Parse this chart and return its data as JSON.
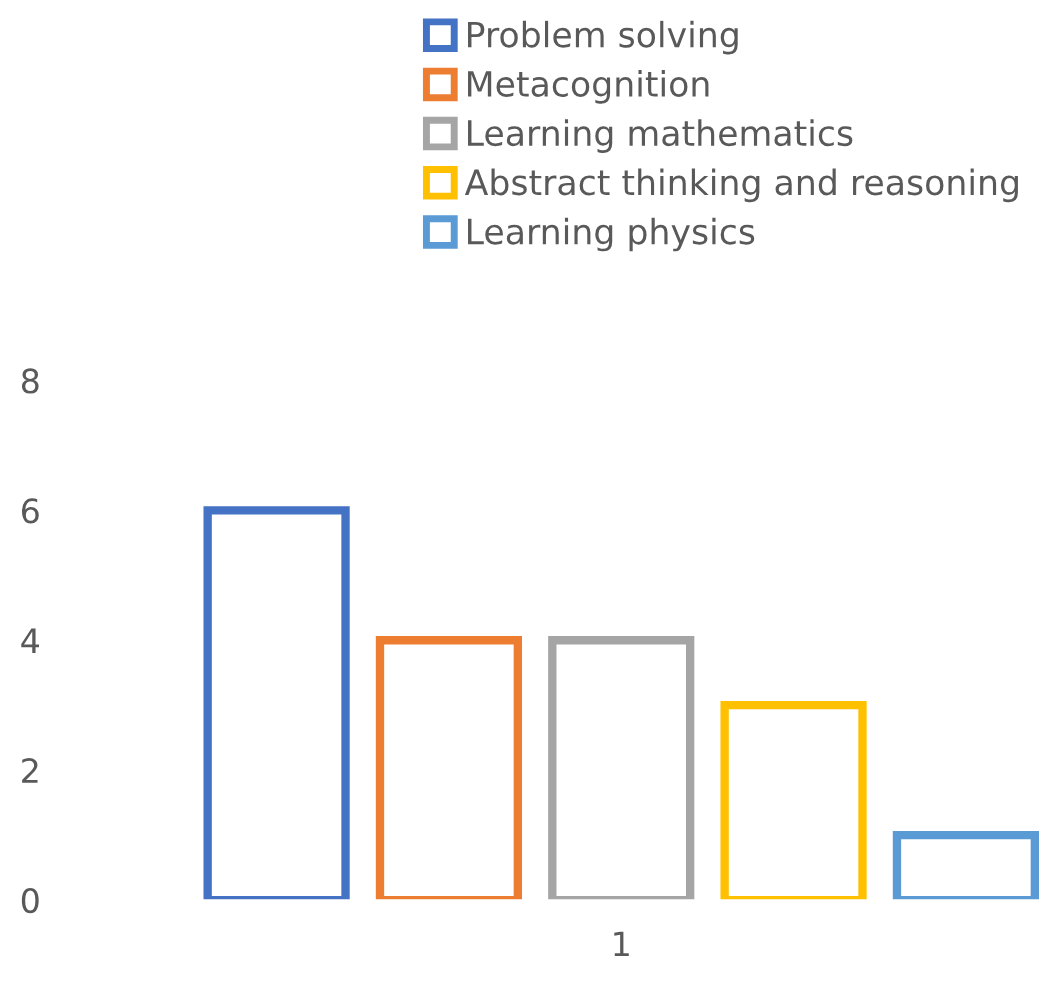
{
  "chart_data": {
    "type": "bar",
    "categories": [
      "1"
    ],
    "series": [
      {
        "name": "Problem solving",
        "color": "#4472c4",
        "values": [
          6
        ]
      },
      {
        "name": "Metacognition",
        "color": "#ed7d31",
        "values": [
          4
        ]
      },
      {
        "name": "Learning mathematics",
        "color": "#a5a5a5",
        "values": [
          4
        ]
      },
      {
        "name": "Abstract thinking and reasoning",
        "color": "#ffc000",
        "values": [
          3
        ]
      },
      {
        "name": "Learning physics",
        "color": "#5b9bd5",
        "values": [
          1
        ]
      }
    ],
    "ylim": [
      0,
      8
    ],
    "yticks": [
      0,
      2,
      4,
      6,
      8
    ],
    "grid": false,
    "legend": "top"
  }
}
